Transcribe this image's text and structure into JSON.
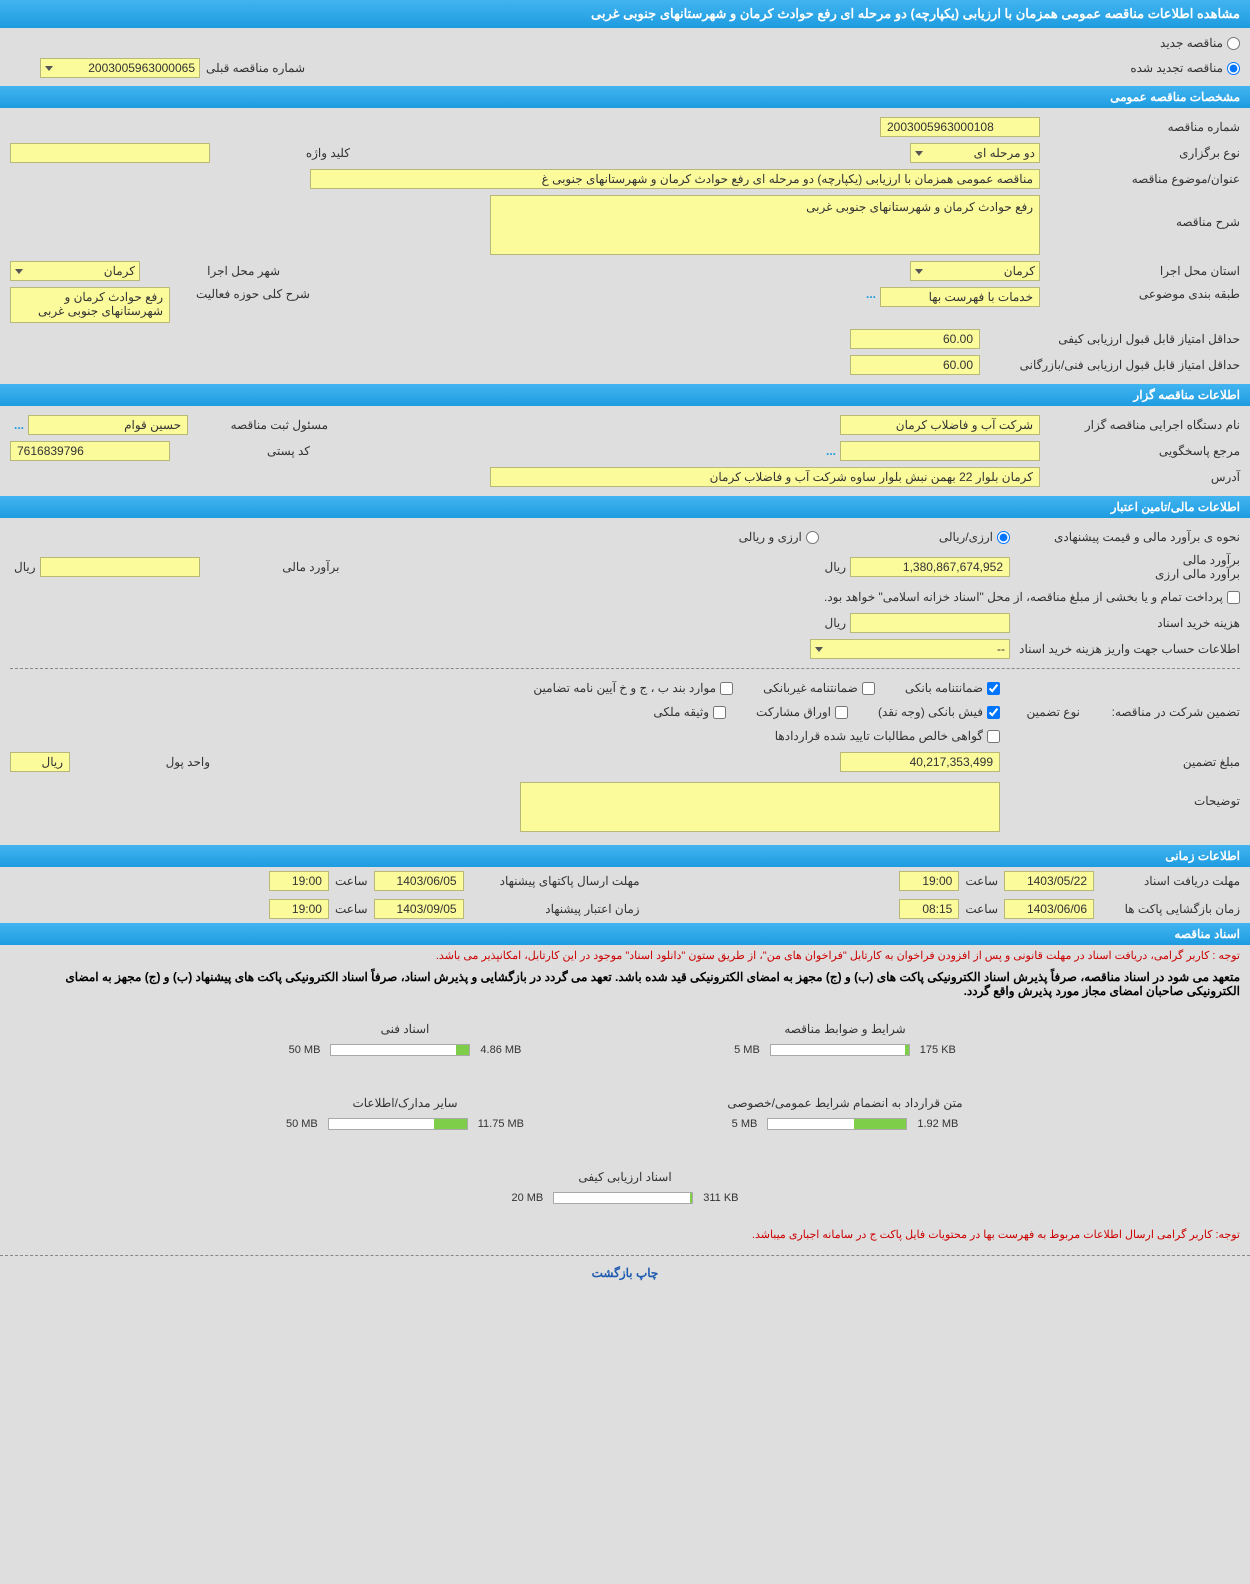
{
  "title": "مشاهده اطلاعات مناقصه عمومی همزمان با ارزیابی (یکپارچه) دو مرحله ای رفع حوادث کرمان و شهرستانهای جنوبی غربی",
  "radio": {
    "new_label": "مناقصه جدید",
    "renewed_label": "مناقصه تجدید شده",
    "renewed_checked": true,
    "prev_label": "شماره مناقصه قبلی",
    "prev_value": "2003005963000065"
  },
  "sections": {
    "general": "مشخصات مناقصه عمومی",
    "organizer": "اطلاعات مناقصه گزار",
    "financial": "اطلاعات مالی/تامین اعتبار",
    "timing": "اطلاعات زمانی",
    "docs": "اسناد مناقصه"
  },
  "general": {
    "number_label": "شماره مناقصه",
    "number": "2003005963000108",
    "type_label": "نوع برگزاری",
    "type": "دو مرحله ای",
    "keyword_label": "کلید واژه",
    "keyword": "",
    "subject_label": "عنوان/موضوع مناقصه",
    "subject": "مناقصه عمومی همزمان با ارزیابی (یکپارچه) دو مرحله ای رفع حوادث کرمان و شهرستانهای جنوبی غ",
    "desc_label": "شرح مناقصه",
    "desc": "رفع حوادث کرمان و شهرستانهای جنوبی غربی",
    "province_label": "استان محل اجرا",
    "province": "کرمان",
    "city_label": "شهر محل اجرا",
    "city": "کرمان",
    "category_label": "طبقه بندی موضوعی",
    "category": "خدمات با فهرست بها",
    "scope_label": "شرح کلی حوزه فعالیت",
    "scope": "رفع حوادث کرمان و شهرستانهای جنوبی غربی",
    "min_qual_label": "حداقل امتیاز قابل قبول ارزیابی کیفی",
    "min_qual": "60.00",
    "min_tech_label": "حداقل امتیاز قابل قبول ارزیابی فنی/بازرگانی",
    "min_tech": "60.00"
  },
  "organizer": {
    "agency_label": "نام دستگاه اجرایی مناقصه گزار",
    "agency": "شرکت آب و فاضلاب کرمان",
    "register_label": "مسئول ثبت مناقصه",
    "register": "حسین قوام",
    "ref_label": "مرجع پاسخگویی",
    "ref": "",
    "postal_label": "کد پستی",
    "postal": "7616839796",
    "address_label": "آدرس",
    "address": "کرمان بلوار 22 بهمن نبش بلوار ساوه شرکت آب و فاضلاب کرمان"
  },
  "financial": {
    "estimate_method_label": "نحوه ی برآورد مالی و قیمت پیشنهادی",
    "radio_rial": "ارزی/ریالی",
    "radio_arz": "ارزی و ریالی",
    "rial_checked": true,
    "est_rial_label": "برآورد مالی",
    "est_arz_label": "برآورد مالی ارزی",
    "est_value": "1,380,867,674,952",
    "est_rial2_label": "برآورد مالی",
    "est_value2": "",
    "unit_rial": "ریال",
    "payment_note": "پرداخت تمام و یا بخشی از مبلغ مناقصه، از محل \"اسناد خزانه اسلامی\" خواهد بود.",
    "doc_price_label": "هزینه خرید اسناد",
    "doc_price": "",
    "account_label": "اطلاعات حساب جهت واریز هزینه خرید اسناد",
    "account": "--",
    "guarantee_label": "تضمین شرکت در مناقصه:",
    "guarantee_type_label": "نوع تضمین",
    "cb_bank": "ضمانتنامه بانکی",
    "cb_nonbank": "ضمانتنامه غیربانکی",
    "cb_items": "موارد بند ب ، ج و خ آیین نامه تضامین",
    "cb_cash": "فیش بانکی (وجه نقد)",
    "cb_bonds": "اوراق مشارکت",
    "cb_property": "وثیقه ملکی",
    "cb_claims": "گواهی خالص مطالبات تایید شده قراردادها",
    "cb_bank_checked": true,
    "cb_cash_checked": true,
    "guarantee_amount_label": "مبلغ تضمین",
    "guarantee_amount": "40,217,353,499",
    "currency_unit_label": "واحد پول",
    "currency_unit": "ریال",
    "explain_label": "توضیحات"
  },
  "timing": {
    "receive_label": "مهلت دریافت اسناد",
    "receive_date": "1403/05/22",
    "receive_time_label": "ساعت",
    "receive_time": "19:00",
    "send_label": "مهلت ارسال پاکتهای پیشنهاد",
    "send_date": "1403/06/05",
    "send_time": "19:00",
    "open_label": "زمان بازگشایی پاکت ها",
    "open_date": "1403/06/06",
    "open_time": "08:15",
    "valid_label": "زمان اعتبار پیشنهاد",
    "valid_date": "1403/09/05",
    "valid_time": "19:00"
  },
  "docs": {
    "notice1": "توجه : کاربر گرامی، دریافت اسناد در مهلت قانونی و پس از افزودن فراخوان به کارتابل \"فراخوان های من\"، از طریق ستون \"دانلود اسناد\" موجود در این کارتابل، امکانپذیر می باشد.",
    "notice2": "متعهد می شود در اسناد مناقصه، صرفاً پذیرش اسناد الکترونیکی پاکت های (ب) و (ج) مجهز به امضای الکترونیکی قید شده باشد. تعهد می گردد در بازگشایی و پذیرش اسناد، صرفاً اسناد الکترونیکی پاکت های پیشنهاد (ب) و (ج) مجهز به امضای الکترونیکی صاحبان امضای مجاز مورد پذیرش واقع گردد.",
    "notice3": "توجه: کاربر گرامی ارسال اطلاعات مربوط به فهرست بها در محتویات فایل پاکت ج در سامانه اجباری میباشد.",
    "files": [
      {
        "title": "شرایط و ضوابط مناقصه",
        "used": "175 KB",
        "max": "5 MB",
        "pct": 3
      },
      {
        "title": "اسناد فنی",
        "used": "4.86 MB",
        "max": "50 MB",
        "pct": 10
      },
      {
        "title": "متن قرارداد به انضمام شرایط عمومی/خصوصی",
        "used": "1.92 MB",
        "max": "5 MB",
        "pct": 38
      },
      {
        "title": "سایر مدارک/اطلاعات",
        "used": "11.75 MB",
        "max": "50 MB",
        "pct": 24
      },
      {
        "title": "اسناد ارزیابی کیفی",
        "used": "311 KB",
        "max": "20 MB",
        "pct": 2
      }
    ]
  },
  "footer_link": "چاپ بازگشت"
}
